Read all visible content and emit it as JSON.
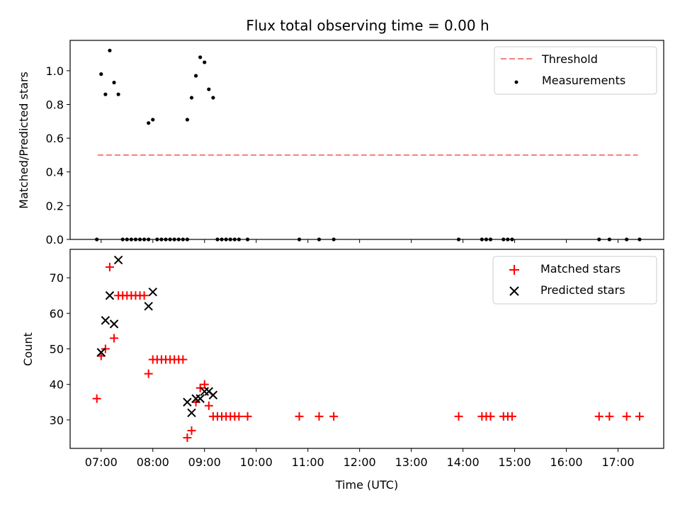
{
  "title": "Flux total observing time = 0.00 h",
  "colors": {
    "threshold": "#f08080",
    "measurement": "#000000",
    "matched": "#ff0000",
    "predicted": "#000000"
  },
  "chart_data": [
    {
      "type": "scatter",
      "panel": "top",
      "ylabel": "Matched/Predicted stars",
      "ylim": [
        0,
        1.18
      ],
      "yticks": [
        0.0,
        0.2,
        0.4,
        0.6,
        0.8,
        1.0
      ],
      "ytick_labels": [
        "0.0",
        "0.2",
        "0.4",
        "0.6",
        "0.8",
        "1.0"
      ],
      "legend_position": "top-right",
      "legend": [
        "Threshold",
        "Measurements"
      ],
      "threshold": {
        "name": "Threshold",
        "value": 0.5,
        "x_start": "06:56",
        "x_end": "17:23",
        "style": "dashed"
      },
      "series": [
        {
          "name": "Measurements",
          "marker": "dot",
          "x": [
            "06:55",
            "07:00",
            "07:05",
            "07:10",
            "07:15",
            "07:20",
            "07:25",
            "07:30",
            "07:35",
            "07:40",
            "07:45",
            "07:50",
            "07:55",
            "07:55",
            "08:00",
            "08:05",
            "08:10",
            "08:15",
            "08:20",
            "08:25",
            "08:30",
            "08:35",
            "08:40",
            "08:40",
            "08:45",
            "08:50",
            "08:55",
            "09:00",
            "09:05",
            "09:10",
            "09:15",
            "09:20",
            "09:25",
            "09:30",
            "09:35",
            "09:40",
            "09:50",
            "10:50",
            "11:13",
            "11:30",
            "13:55",
            "14:22",
            "14:27",
            "14:32",
            "14:47",
            "14:52",
            "14:57",
            "16:38",
            "16:50",
            "17:10",
            "17:25"
          ],
          "y": [
            0,
            0.98,
            0.86,
            1.12,
            0.93,
            0.86,
            0,
            0,
            0,
            0,
            0,
            0,
            0.69,
            0,
            0.71,
            0,
            0,
            0,
            0,
            0,
            0,
            0,
            0.71,
            0,
            0.84,
            0.97,
            1.08,
            1.05,
            0.89,
            0.84,
            0,
            0,
            0,
            0,
            0,
            0,
            0,
            0,
            0,
            0,
            0,
            0,
            0,
            0,
            0,
            0,
            0,
            0,
            0,
            0,
            0
          ]
        }
      ]
    },
    {
      "type": "scatter",
      "panel": "bottom",
      "xlabel": "Time (UTC)",
      "ylabel": "Count",
      "ylim": [
        22,
        78
      ],
      "xlim": [
        "06:24",
        "17:53"
      ],
      "yticks": [
        30,
        40,
        50,
        60,
        70
      ],
      "ytick_labels": [
        "30",
        "40",
        "50",
        "60",
        "70"
      ],
      "xtick_labels": [
        "07:00",
        "08:00",
        "09:00",
        "10:00",
        "11:00",
        "12:00",
        "13:00",
        "14:00",
        "15:00",
        "16:00",
        "17:00"
      ],
      "legend_position": "top-right",
      "legend": [
        "Matched stars",
        "Predicted stars"
      ],
      "series": [
        {
          "name": "Matched stars",
          "marker": "plus",
          "x": [
            "06:55",
            "07:00",
            "07:05",
            "07:10",
            "07:15",
            "07:20",
            "07:25",
            "07:30",
            "07:35",
            "07:40",
            "07:45",
            "07:50",
            "07:55",
            "08:00",
            "08:05",
            "08:10",
            "08:15",
            "08:20",
            "08:25",
            "08:30",
            "08:35",
            "08:40",
            "08:45",
            "08:50",
            "08:55",
            "09:00",
            "09:05",
            "09:10",
            "09:15",
            "09:20",
            "09:25",
            "09:30",
            "09:35",
            "09:40",
            "09:50",
            "10:50",
            "11:13",
            "11:30",
            "13:55",
            "14:22",
            "14:27",
            "14:32",
            "14:47",
            "14:52",
            "14:57",
            "16:38",
            "16:50",
            "17:10",
            "17:25"
          ],
          "y": [
            36,
            48,
            50,
            73,
            53,
            65,
            65,
            65,
            65,
            65,
            65,
            65,
            43,
            47,
            47,
            47,
            47,
            47,
            47,
            47,
            47,
            25,
            27,
            35,
            39,
            40,
            34,
            31,
            31,
            31,
            31,
            31,
            31,
            31,
            31,
            31,
            31,
            31,
            31,
            31,
            31,
            31,
            31,
            31,
            31,
            31,
            31,
            31,
            31
          ]
        },
        {
          "name": "Predicted stars",
          "marker": "x",
          "x": [
            "07:00",
            "07:05",
            "07:10",
            "07:15",
            "07:20",
            "07:55",
            "08:00",
            "08:40",
            "08:45",
            "08:50",
            "08:55",
            "09:00",
            "09:05",
            "09:10"
          ],
          "y": [
            49,
            58,
            65,
            57,
            75,
            62,
            66,
            35,
            32,
            36,
            36,
            38,
            38,
            37
          ]
        }
      ]
    }
  ]
}
